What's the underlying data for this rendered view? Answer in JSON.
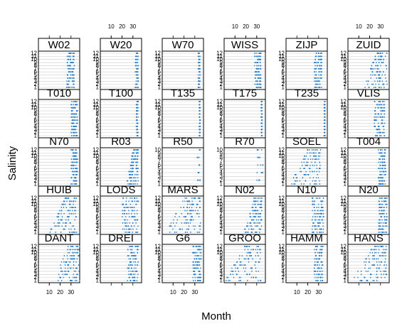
{
  "chart_data": {
    "type": "scatter",
    "layout": "lattice",
    "xlabel": "Month",
    "ylabel": "Salinity",
    "x_ticks": [
      10,
      20,
      30
    ],
    "xlim": [
      0,
      38
    ],
    "point_color": "#1f78c8",
    "gridline_color": "#cccccc",
    "strip_color": "#ffffff",
    "x_axis_top_columns": [
      1,
      3,
      5
    ],
    "x_axis_bottom_columns": [
      1,
      3,
      5
    ],
    "panels": [
      {
        "name": "DANT",
        "row": 1,
        "col": 0,
        "ymax": 12,
        "x_range": [
          14,
          38
        ],
        "profile": "slope"
      },
      {
        "name": "DREI",
        "row": 1,
        "col": 1,
        "ymax": 12,
        "x_range": [
          25,
          35
        ],
        "profile": "band"
      },
      {
        "name": "G6",
        "row": 1,
        "col": 2,
        "ymax": 12,
        "x_range": [
          28,
          36
        ],
        "profile": "band"
      },
      {
        "name": "GROO",
        "row": 1,
        "col": 3,
        "ymax": 12,
        "x_range": [
          0,
          34
        ],
        "profile": "slope"
      },
      {
        "name": "HAMM",
        "row": 1,
        "col": 4,
        "ymax": 12,
        "x_range": [
          26,
          34
        ],
        "profile": "band"
      },
      {
        "name": "HANS",
        "row": 1,
        "col": 5,
        "ymax": 12,
        "x_range": [
          4,
          36
        ],
        "profile": "slope"
      },
      {
        "name": "HUIB",
        "row": 2,
        "col": 0,
        "ymax": 12,
        "x_range": [
          10,
          36
        ],
        "profile": "slope"
      },
      {
        "name": "LODS",
        "row": 2,
        "col": 1,
        "ymax": 12,
        "x_range": [
          20,
          35
        ],
        "profile": "band"
      },
      {
        "name": "MARS",
        "row": 2,
        "col": 2,
        "ymax": 12,
        "x_range": [
          2,
          36
        ],
        "profile": "slope"
      },
      {
        "name": "N02",
        "row": 2,
        "col": 3,
        "ymax": 12,
        "x_range": [
          18,
          35
        ],
        "profile": "slope"
      },
      {
        "name": "N10",
        "row": 2,
        "col": 4,
        "ymax": 12,
        "x_range": [
          24,
          35
        ],
        "profile": "band"
      },
      {
        "name": "N20",
        "row": 2,
        "col": 5,
        "ymax": 12,
        "x_range": [
          28,
          36
        ],
        "profile": "band"
      },
      {
        "name": "N70",
        "row": 3,
        "col": 0,
        "ymax": 12,
        "x_range": [
          30,
          36
        ],
        "profile": "band"
      },
      {
        "name": "R03",
        "row": 3,
        "col": 1,
        "ymax": 12,
        "x_range": [
          24,
          35
        ],
        "profile": "slope"
      },
      {
        "name": "R50",
        "row": 3,
        "col": 2,
        "ymax": 10,
        "x_range": [
          32,
          35
        ],
        "profile": "sparse"
      },
      {
        "name": "R70",
        "row": 3,
        "col": 3,
        "ymax": 10,
        "x_range": [
          30,
          36
        ],
        "profile": "sparse"
      },
      {
        "name": "SOEL",
        "row": 3,
        "col": 4,
        "ymax": 12,
        "x_range": [
          4,
          32
        ],
        "profile": "slope"
      },
      {
        "name": "T004",
        "row": 3,
        "col": 5,
        "ymax": 12,
        "x_range": [
          28,
          35
        ],
        "profile": "band"
      },
      {
        "name": "T010",
        "row": 4,
        "col": 0,
        "ymax": 12,
        "x_range": [
          30,
          36
        ],
        "profile": "band"
      },
      {
        "name": "T100",
        "row": 4,
        "col": 1,
        "ymax": 12,
        "x_range": [
          33,
          35
        ],
        "profile": "line"
      },
      {
        "name": "T135",
        "row": 4,
        "col": 2,
        "ymax": 12,
        "x_range": [
          34,
          35
        ],
        "profile": "line"
      },
      {
        "name": "T175",
        "row": 4,
        "col": 3,
        "ymax": 12,
        "x_range": [
          34,
          35
        ],
        "profile": "line"
      },
      {
        "name": "T235",
        "row": 4,
        "col": 4,
        "ymax": 12,
        "x_range": [
          35,
          36
        ],
        "profile": "line"
      },
      {
        "name": "VLIS",
        "row": 4,
        "col": 5,
        "ymax": 12,
        "x_range": [
          24,
          34
        ],
        "profile": "band"
      },
      {
        "name": "W02",
        "row": 5,
        "col": 0,
        "ymax": 12,
        "x_range": [
          26,
          33
        ],
        "profile": "band"
      },
      {
        "name": "W20",
        "row": 5,
        "col": 1,
        "ymax": 12,
        "x_range": [
          32,
          35
        ],
        "profile": "line"
      },
      {
        "name": "W70",
        "row": 5,
        "col": 2,
        "ymax": 12,
        "x_range": [
          33,
          35
        ],
        "profile": "line"
      },
      {
        "name": "WISS",
        "row": 5,
        "col": 3,
        "ymax": 12,
        "x_range": [
          28,
          34
        ],
        "profile": "band"
      },
      {
        "name": "ZIJP",
        "row": 5,
        "col": 4,
        "ymax": 12,
        "x_range": [
          26,
          33
        ],
        "profile": "band"
      },
      {
        "name": "ZUID",
        "row": 5,
        "col": 5,
        "ymax": 12,
        "x_range": [
          14,
          36
        ],
        "profile": "slope"
      }
    ]
  }
}
